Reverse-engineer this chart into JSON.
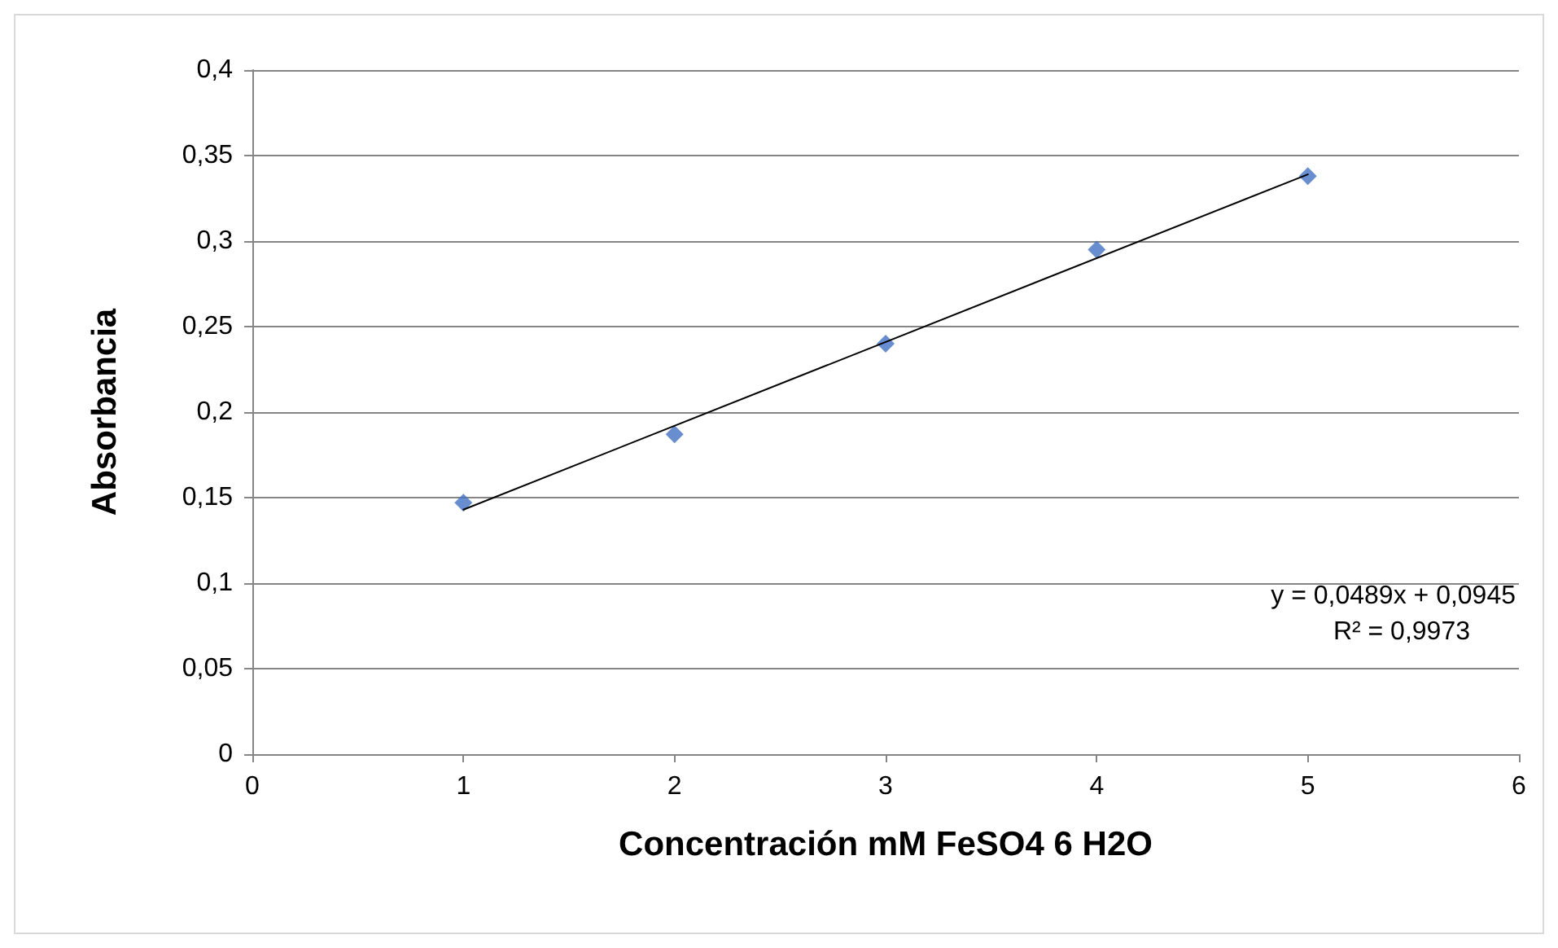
{
  "chart_data": {
    "type": "scatter",
    "xlabel": "Concentración mM FeSO4 6 H2O",
    "ylabel": "Absorbancia",
    "series": [
      {
        "color": "#4472c4",
        "marker": "diamond",
        "x": [
          1,
          2,
          3,
          4,
          5
        ],
        "values": [
          0.147,
          0.187,
          0.24,
          0.295,
          0.338
        ]
      },
      {
        "type": "line",
        "color": "#000000",
        "marker": "none",
        "x": [
          1,
          5
        ],
        "values": [
          0.143,
          0.339
        ]
      }
    ],
    "xlim": [
      0,
      6
    ],
    "xticks": [
      0,
      1,
      2,
      3,
      4,
      5,
      6
    ],
    "ylim": [
      0,
      0.4
    ],
    "yticks": [
      {
        "value": 0,
        "label": "0"
      },
      {
        "value": 0.05,
        "label": "0,05"
      },
      {
        "value": 0.1,
        "label": "0,1"
      },
      {
        "value": 0.15,
        "label": "0,15"
      },
      {
        "value": 0.2,
        "label": "0,2"
      },
      {
        "value": 0.25,
        "label": "0,25"
      },
      {
        "value": 0.3,
        "label": "0,3"
      },
      {
        "value": 0.35,
        "label": "0,35"
      },
      {
        "value": 0.4,
        "label": "0,4"
      }
    ],
    "grid": "y",
    "annotations": [
      "y = 0,0489x + 0,0945",
      "R² = 0,9973"
    ]
  }
}
